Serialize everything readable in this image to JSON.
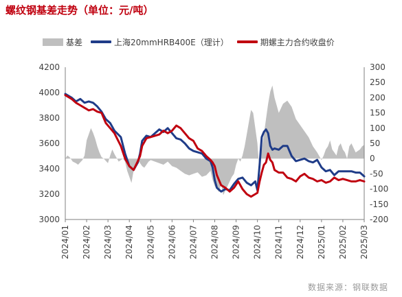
{
  "page": {
    "title": "螺纹钢基差走势（单位：元/吨）",
    "source": "数据来源：钢联数据"
  },
  "colors": {
    "basis": "#bfbfbf",
    "spot": "#1f3c88",
    "futures": "#c0000f",
    "axis": "#7f7f7f"
  },
  "chart_data": {
    "type": "line",
    "grid": false,
    "legend_position": "top",
    "x_tick_labels": [
      "2024/01",
      "2024/02",
      "2024/03",
      "2024/04",
      "2024/05",
      "2024/06",
      "2024/07",
      "2024/08",
      "2024/09",
      "2024/10",
      "2024/11",
      "2024/12",
      "2025/01",
      "2025/02",
      "2025/03"
    ],
    "y_left": {
      "range": [
        3000,
        4200
      ],
      "ticks": [
        3000,
        3200,
        3400,
        3600,
        3800,
        4000,
        4200
      ]
    },
    "y_right": {
      "range": [
        -200,
        300
      ],
      "ticks": [
        -200,
        -150,
        -100,
        -50,
        0,
        50,
        100,
        150,
        200,
        250,
        300
      ]
    },
    "series": [
      {
        "name": "基差",
        "chart_kind": "area",
        "axis": "right",
        "x": [
          0,
          0.1,
          0.2,
          0.35,
          0.5,
          0.6,
          0.8,
          0.9,
          1.0,
          1.1,
          1.2,
          1.3,
          1.4,
          1.5,
          1.6,
          1.7,
          1.8,
          2.0,
          2.1,
          2.2,
          2.3,
          2.5,
          2.7,
          2.8,
          2.9,
          3.0,
          3.1,
          3.2,
          3.3,
          3.4,
          3.5,
          3.6,
          3.7,
          3.8,
          3.9,
          4.0,
          4.2,
          4.4,
          4.6,
          4.8,
          5.0,
          5.2,
          5.4,
          5.6,
          5.8,
          6.0,
          6.2,
          6.4,
          6.6,
          6.8,
          6.9,
          7.0,
          7.1,
          7.2,
          7.3,
          7.4,
          7.6,
          7.8,
          7.9,
          8.0,
          8.1,
          8.2,
          8.3,
          8.4,
          8.5,
          8.6,
          8.7,
          8.8,
          8.9,
          9.0,
          9.05,
          9.1,
          9.2,
          9.3,
          9.4,
          9.5,
          9.6,
          9.7,
          9.8,
          10.0,
          10.2,
          10.4,
          10.6,
          10.8,
          11.0,
          11.2,
          11.4,
          11.6,
          11.8,
          12.0,
          12.1,
          12.2,
          12.3,
          12.4,
          12.5,
          12.6,
          12.7,
          12.8,
          12.9,
          13.0,
          13.1,
          13.2,
          13.3,
          13.4,
          13.6,
          13.8,
          13.9,
          14.0
        ],
        "values": [
          0,
          10,
          5,
          -10,
          -15,
          -20,
          -5,
          10,
          60,
          80,
          100,
          85,
          65,
          40,
          20,
          5,
          0,
          -15,
          10,
          30,
          15,
          -10,
          0,
          -10,
          -40,
          -60,
          -80,
          -40,
          -20,
          0,
          -15,
          -25,
          -30,
          -20,
          -10,
          -5,
          -10,
          -15,
          -20,
          -10,
          -25,
          -30,
          -40,
          -50,
          -55,
          -50,
          -45,
          -60,
          -55,
          -40,
          -70,
          -90,
          -100,
          -110,
          -80,
          -120,
          -90,
          -60,
          -50,
          -20,
          0,
          -10,
          10,
          40,
          80,
          120,
          160,
          150,
          100,
          50,
          0,
          -30,
          30,
          80,
          130,
          180,
          220,
          240,
          200,
          150,
          180,
          190,
          170,
          130,
          110,
          90,
          70,
          40,
          20,
          -5,
          10,
          30,
          40,
          60,
          30,
          20,
          10,
          40,
          50,
          30,
          20,
          0,
          40,
          50,
          20,
          30,
          40,
          45
        ]
      },
      {
        "name": "上海20mmHRB400E（理计）",
        "chart_kind": "line",
        "axis": "left",
        "x": [
          0,
          0.3,
          0.5,
          0.7,
          0.9,
          1.1,
          1.3,
          1.5,
          1.7,
          1.8,
          1.9,
          2.1,
          2.3,
          2.6,
          2.8,
          3.0,
          3.2,
          3.4,
          3.5,
          3.6,
          3.8,
          4.0,
          4.2,
          4.4,
          4.6,
          4.8,
          5.0,
          5.2,
          5.4,
          5.6,
          5.8,
          6.0,
          6.2,
          6.4,
          6.6,
          6.8,
          6.9,
          7.0,
          7.1,
          7.3,
          7.5,
          7.7,
          7.9,
          8.1,
          8.3,
          8.5,
          8.7,
          8.9,
          9.0,
          9.1,
          9.2,
          9.3,
          9.4,
          9.5,
          9.6,
          9.7,
          9.8,
          10.0,
          10.2,
          10.4,
          10.6,
          10.8,
          11.0,
          11.2,
          11.4,
          11.6,
          11.8,
          12.0,
          12.2,
          12.4,
          12.6,
          12.8,
          13.0,
          13.2,
          13.4,
          13.6,
          13.8,
          14.0
        ],
        "values": [
          3990,
          3960,
          3930,
          3950,
          3920,
          3930,
          3920,
          3890,
          3850,
          3820,
          3790,
          3760,
          3700,
          3650,
          3520,
          3420,
          3390,
          3450,
          3520,
          3620,
          3660,
          3650,
          3680,
          3710,
          3690,
          3720,
          3680,
          3640,
          3630,
          3600,
          3560,
          3540,
          3530,
          3520,
          3480,
          3460,
          3410,
          3310,
          3250,
          3220,
          3240,
          3230,
          3280,
          3320,
          3330,
          3290,
          3270,
          3300,
          3230,
          3430,
          3650,
          3690,
          3710,
          3680,
          3580,
          3550,
          3560,
          3550,
          3580,
          3580,
          3500,
          3460,
          3470,
          3480,
          3460,
          3450,
          3470,
          3410,
          3380,
          3390,
          3350,
          3380,
          3380,
          3380,
          3380,
          3370,
          3370,
          3340
        ]
      },
      {
        "name": "期螺主力合约收盘价",
        "chart_kind": "line",
        "axis": "left",
        "x": [
          0,
          0.3,
          0.5,
          0.7,
          0.9,
          1.1,
          1.3,
          1.5,
          1.7,
          1.8,
          1.9,
          2.1,
          2.3,
          2.6,
          2.8,
          3.0,
          3.2,
          3.4,
          3.5,
          3.6,
          3.8,
          4.0,
          4.2,
          4.4,
          4.6,
          4.8,
          5.0,
          5.2,
          5.4,
          5.6,
          5.8,
          6.0,
          6.2,
          6.4,
          6.6,
          6.8,
          6.9,
          7.0,
          7.1,
          7.3,
          7.5,
          7.7,
          7.9,
          8.1,
          8.3,
          8.5,
          8.7,
          8.9,
          9.0,
          9.1,
          9.2,
          9.3,
          9.4,
          9.5,
          9.6,
          9.7,
          9.8,
          10.0,
          10.2,
          10.4,
          10.6,
          10.8,
          11.0,
          11.2,
          11.4,
          11.6,
          11.8,
          12.0,
          12.2,
          12.4,
          12.6,
          12.8,
          13.0,
          13.2,
          13.4,
          13.6,
          13.8,
          14.0
        ],
        "values": [
          3980,
          3950,
          3920,
          3900,
          3880,
          3860,
          3870,
          3850,
          3840,
          3800,
          3760,
          3720,
          3680,
          3580,
          3480,
          3420,
          3390,
          3460,
          3500,
          3580,
          3640,
          3650,
          3660,
          3670,
          3700,
          3680,
          3700,
          3740,
          3720,
          3680,
          3640,
          3620,
          3560,
          3540,
          3500,
          3470,
          3450,
          3420,
          3350,
          3270,
          3250,
          3220,
          3250,
          3300,
          3240,
          3200,
          3180,
          3200,
          3210,
          3300,
          3370,
          3430,
          3450,
          3520,
          3470,
          3450,
          3390,
          3370,
          3370,
          3330,
          3320,
          3300,
          3340,
          3360,
          3330,
          3320,
          3300,
          3310,
          3290,
          3300,
          3330,
          3310,
          3320,
          3310,
          3300,
          3300,
          3310,
          3300
        ]
      }
    ]
  }
}
